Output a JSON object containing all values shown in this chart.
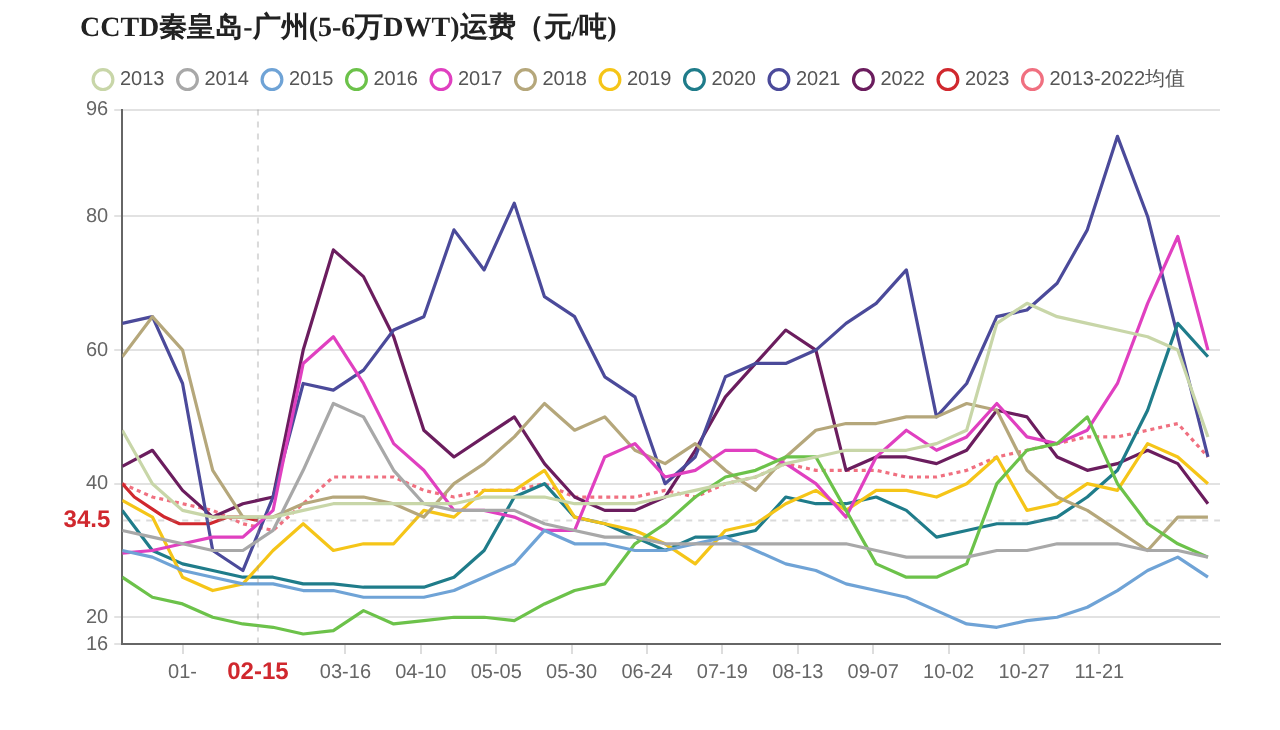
{
  "chart_data": {
    "type": "line",
    "title": "CCTD秦皇岛-广州(5-6万DWT)运费（元/吨)",
    "x": [
      "--01-01",
      "--01-11",
      "--01-21",
      "--01-31",
      "--02-10",
      "--02-20",
      "--03-02",
      "--03-12",
      "--03-22",
      "--04-01",
      "--04-11",
      "--04-21",
      "--05-01",
      "--05-11",
      "--05-21",
      "--05-31",
      "--06-10",
      "--06-20",
      "--06-30",
      "--07-10",
      "--07-20",
      "--07-30",
      "--08-09",
      "--08-19",
      "--08-29",
      "--09-08",
      "--09-18",
      "--09-28",
      "--10-08",
      "--10-18",
      "--10-28",
      "--11-07",
      "--11-17",
      "--11-27",
      "--12-07",
      "--12-17",
      "--12-27"
    ],
    "series": [
      {
        "name": "2013",
        "color": "#c8d6a8",
        "values": [
          48,
          40,
          36,
          35,
          35,
          35,
          36,
          37,
          37,
          37,
          37,
          37,
          38,
          38,
          38,
          37,
          37,
          37,
          38,
          39,
          40,
          41,
          43,
          44,
          45,
          45,
          45,
          46,
          48,
          64,
          67,
          65,
          64,
          63,
          62,
          60,
          47
        ]
      },
      {
        "name": "2014",
        "color": "#a8a8a8",
        "values": [
          33,
          32,
          31,
          30,
          30,
          33,
          42,
          52,
          50,
          42,
          37,
          36,
          36,
          36,
          34,
          33,
          32,
          32,
          31,
          31,
          31,
          31,
          31,
          31,
          31,
          30,
          29,
          29,
          29,
          30,
          30,
          31,
          31,
          31,
          30,
          30,
          29
        ]
      },
      {
        "name": "2015",
        "color": "#6fa3d6",
        "values": [
          30,
          29,
          27,
          26,
          25,
          25,
          24,
          24,
          23,
          23,
          23,
          24,
          26,
          28,
          33,
          31,
          31,
          30,
          30,
          31,
          32,
          30,
          28,
          27,
          25,
          24,
          23,
          21,
          19,
          18.5,
          19.5,
          20,
          21.5,
          24,
          27,
          29,
          26
        ]
      },
      {
        "name": "2016",
        "color": "#6cc24a",
        "values": [
          26,
          23,
          22,
          20,
          19,
          18.5,
          17.5,
          18,
          21,
          19,
          19.5,
          20,
          20,
          19.5,
          22,
          24,
          25,
          31,
          34,
          38,
          41,
          42,
          44,
          44,
          36,
          28,
          26,
          26,
          28,
          40,
          45,
          46,
          50,
          40,
          34,
          31,
          29
        ]
      },
      {
        "name": "2017",
        "color": "#e040c0",
        "values": [
          29.6,
          30,
          31,
          32,
          32,
          36,
          58,
          62,
          55,
          46,
          42,
          36,
          36,
          35,
          33,
          33,
          44,
          46,
          41,
          42,
          45,
          45,
          43,
          40,
          35,
          44,
          48,
          45,
          47,
          52,
          47,
          46,
          48,
          55,
          67,
          77,
          60
        ]
      },
      {
        "name": "2018",
        "color": "#b5a77b",
        "values": [
          59,
          65,
          60,
          42,
          35,
          35,
          37,
          38,
          38,
          37,
          35,
          40,
          43,
          47,
          52,
          48,
          50,
          45,
          43,
          46,
          42,
          39,
          44,
          48,
          49,
          49,
          50,
          50,
          52,
          51,
          42,
          38,
          36,
          33,
          30,
          35,
          35
        ]
      },
      {
        "name": "2019",
        "color": "#f5c518",
        "values": [
          37.5,
          35,
          26,
          24,
          25,
          30,
          34,
          30,
          31,
          31,
          36,
          35,
          39,
          39,
          42,
          35,
          34,
          33,
          31,
          28,
          33,
          34,
          37,
          39,
          36,
          39,
          39,
          38,
          40,
          44,
          36,
          37,
          40,
          39,
          46,
          44,
          40
        ]
      },
      {
        "name": "2020",
        "color": "#1f7c8a",
        "values": [
          36,
          30,
          28,
          27,
          26,
          26,
          25,
          25,
          24.5,
          24.5,
          24.5,
          26,
          30,
          38,
          40,
          35,
          34,
          32,
          30,
          32,
          32,
          33,
          38,
          37,
          37,
          38,
          36,
          32,
          33,
          34,
          34,
          35,
          38,
          42,
          51,
          64,
          59
        ]
      },
      {
        "name": "2021",
        "color": "#4b4a9a",
        "values": [
          64,
          65,
          55,
          30,
          27,
          38,
          55,
          54,
          57,
          63,
          65,
          78,
          72,
          82,
          68,
          65,
          56,
          53,
          40,
          44,
          56,
          58,
          58,
          60,
          64,
          67,
          72,
          50,
          55,
          65,
          66,
          70,
          78,
          92,
          80,
          62,
          44
        ]
      },
      {
        "name": "2022",
        "color": "#6b1d5e",
        "values": [
          42.6,
          45,
          39,
          35,
          37,
          38,
          60,
          75,
          71,
          62,
          48,
          44,
          47,
          50,
          43,
          38,
          36,
          36,
          38,
          45,
          53,
          58,
          63,
          60,
          42,
          44,
          44,
          43,
          45,
          51,
          50,
          44,
          42,
          43,
          45,
          43,
          37
        ]
      },
      {
        "name": "2023",
        "color": "#d0282e",
        "x": [
          "--01-01",
          "--01-05",
          "--01-10",
          "--01-15",
          "--01-20",
          "--01-30",
          "--02-05",
          "--02-10",
          "--02-15"
        ],
        "values": [
          40,
          38,
          36.5,
          35,
          34,
          34,
          35,
          35,
          34.5
        ]
      },
      {
        "name": "2013-2022均值",
        "color": "#f07080",
        "line_style": "dotted",
        "values": [
          40,
          38,
          37,
          36,
          34,
          33,
          37,
          41,
          41,
          41,
          39,
          38,
          39,
          39,
          40,
          38,
          38,
          38,
          39,
          38,
          40,
          41,
          43,
          42,
          42,
          42,
          41,
          41,
          42,
          44,
          45,
          46,
          47,
          47,
          48,
          49,
          44
        ]
      }
    ],
    "xlim": [
      "--01-01",
      "--12-31"
    ],
    "xticks": [
      {
        "value": "--01-21",
        "label": "01-"
      },
      {
        "value": "--03-16",
        "label": "03-16"
      },
      {
        "value": "--04-10",
        "label": "04-10"
      },
      {
        "value": "--05-05",
        "label": "05-05"
      },
      {
        "value": "--05-30",
        "label": "05-30"
      },
      {
        "value": "--06-24",
        "label": "06-24"
      },
      {
        "value": "--07-19",
        "label": "07-19"
      },
      {
        "value": "--08-13",
        "label": "08-13"
      },
      {
        "value": "--09-07",
        "label": "09-07"
      },
      {
        "value": "--10-02",
        "label": "10-02"
      },
      {
        "value": "--10-27",
        "label": "10-27"
      },
      {
        "value": "--11-21",
        "label": "11-21"
      }
    ],
    "ylim": [
      16,
      96
    ],
    "yticks": [
      16,
      20,
      40,
      60,
      80,
      96
    ],
    "grid": "y",
    "legend": "top left",
    "ref_lines": [
      {
        "axis": "y",
        "value": 34.5,
        "label": "34.5"
      },
      {
        "axis": "x",
        "value": "--02-15",
        "label": "02-15"
      }
    ]
  }
}
